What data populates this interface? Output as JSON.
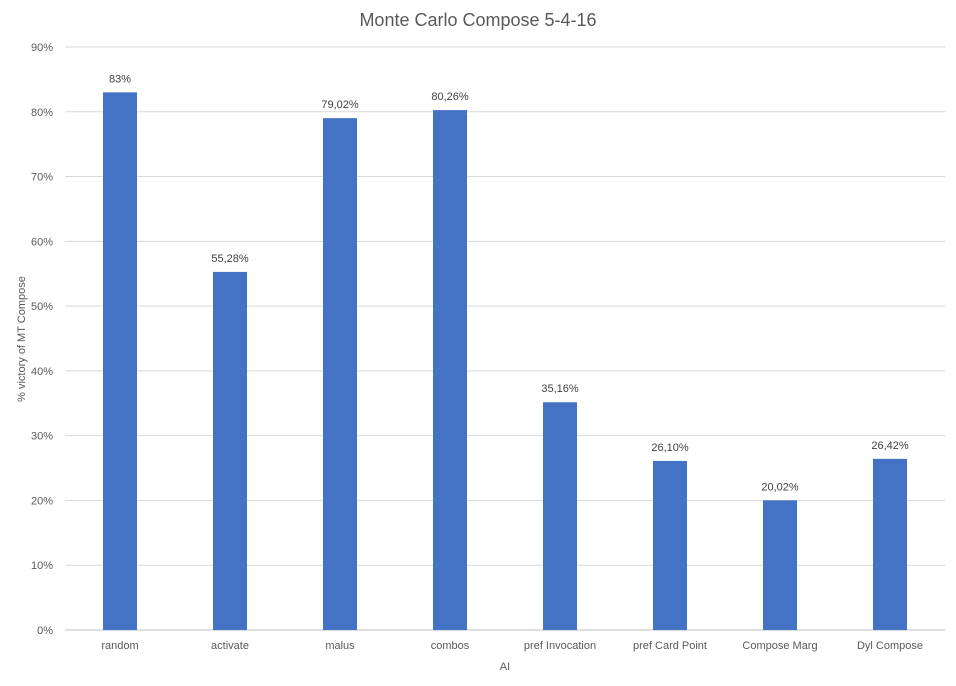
{
  "chart_data": {
    "type": "bar",
    "title": "Monte Carlo Compose 5-4-16",
    "xlabel": "AI",
    "ylabel": "% victory of MT Compose",
    "ylim": [
      0,
      90
    ],
    "yticks": [
      0,
      10,
      20,
      30,
      40,
      50,
      60,
      70,
      80,
      90
    ],
    "ytick_labels": [
      "0%",
      "10%",
      "20%",
      "30%",
      "40%",
      "50%",
      "60%",
      "70%",
      "80%",
      "90%"
    ],
    "grid": true,
    "legend": "none",
    "categories": [
      "random",
      "activate",
      "malus",
      "combos",
      "pref Invocation",
      "pref Card Point",
      "Compose Marg",
      "Dyl Compose"
    ],
    "values": [
      83,
      55.28,
      79.02,
      80.26,
      35.16,
      26.1,
      20.02,
      26.42
    ],
    "data_labels": [
      "83%",
      "55,28%",
      "79,02%",
      "80,26%",
      "35,16%",
      "26,10%",
      "20,02%",
      "26,42%"
    ],
    "bar_color": "#4472c4"
  }
}
